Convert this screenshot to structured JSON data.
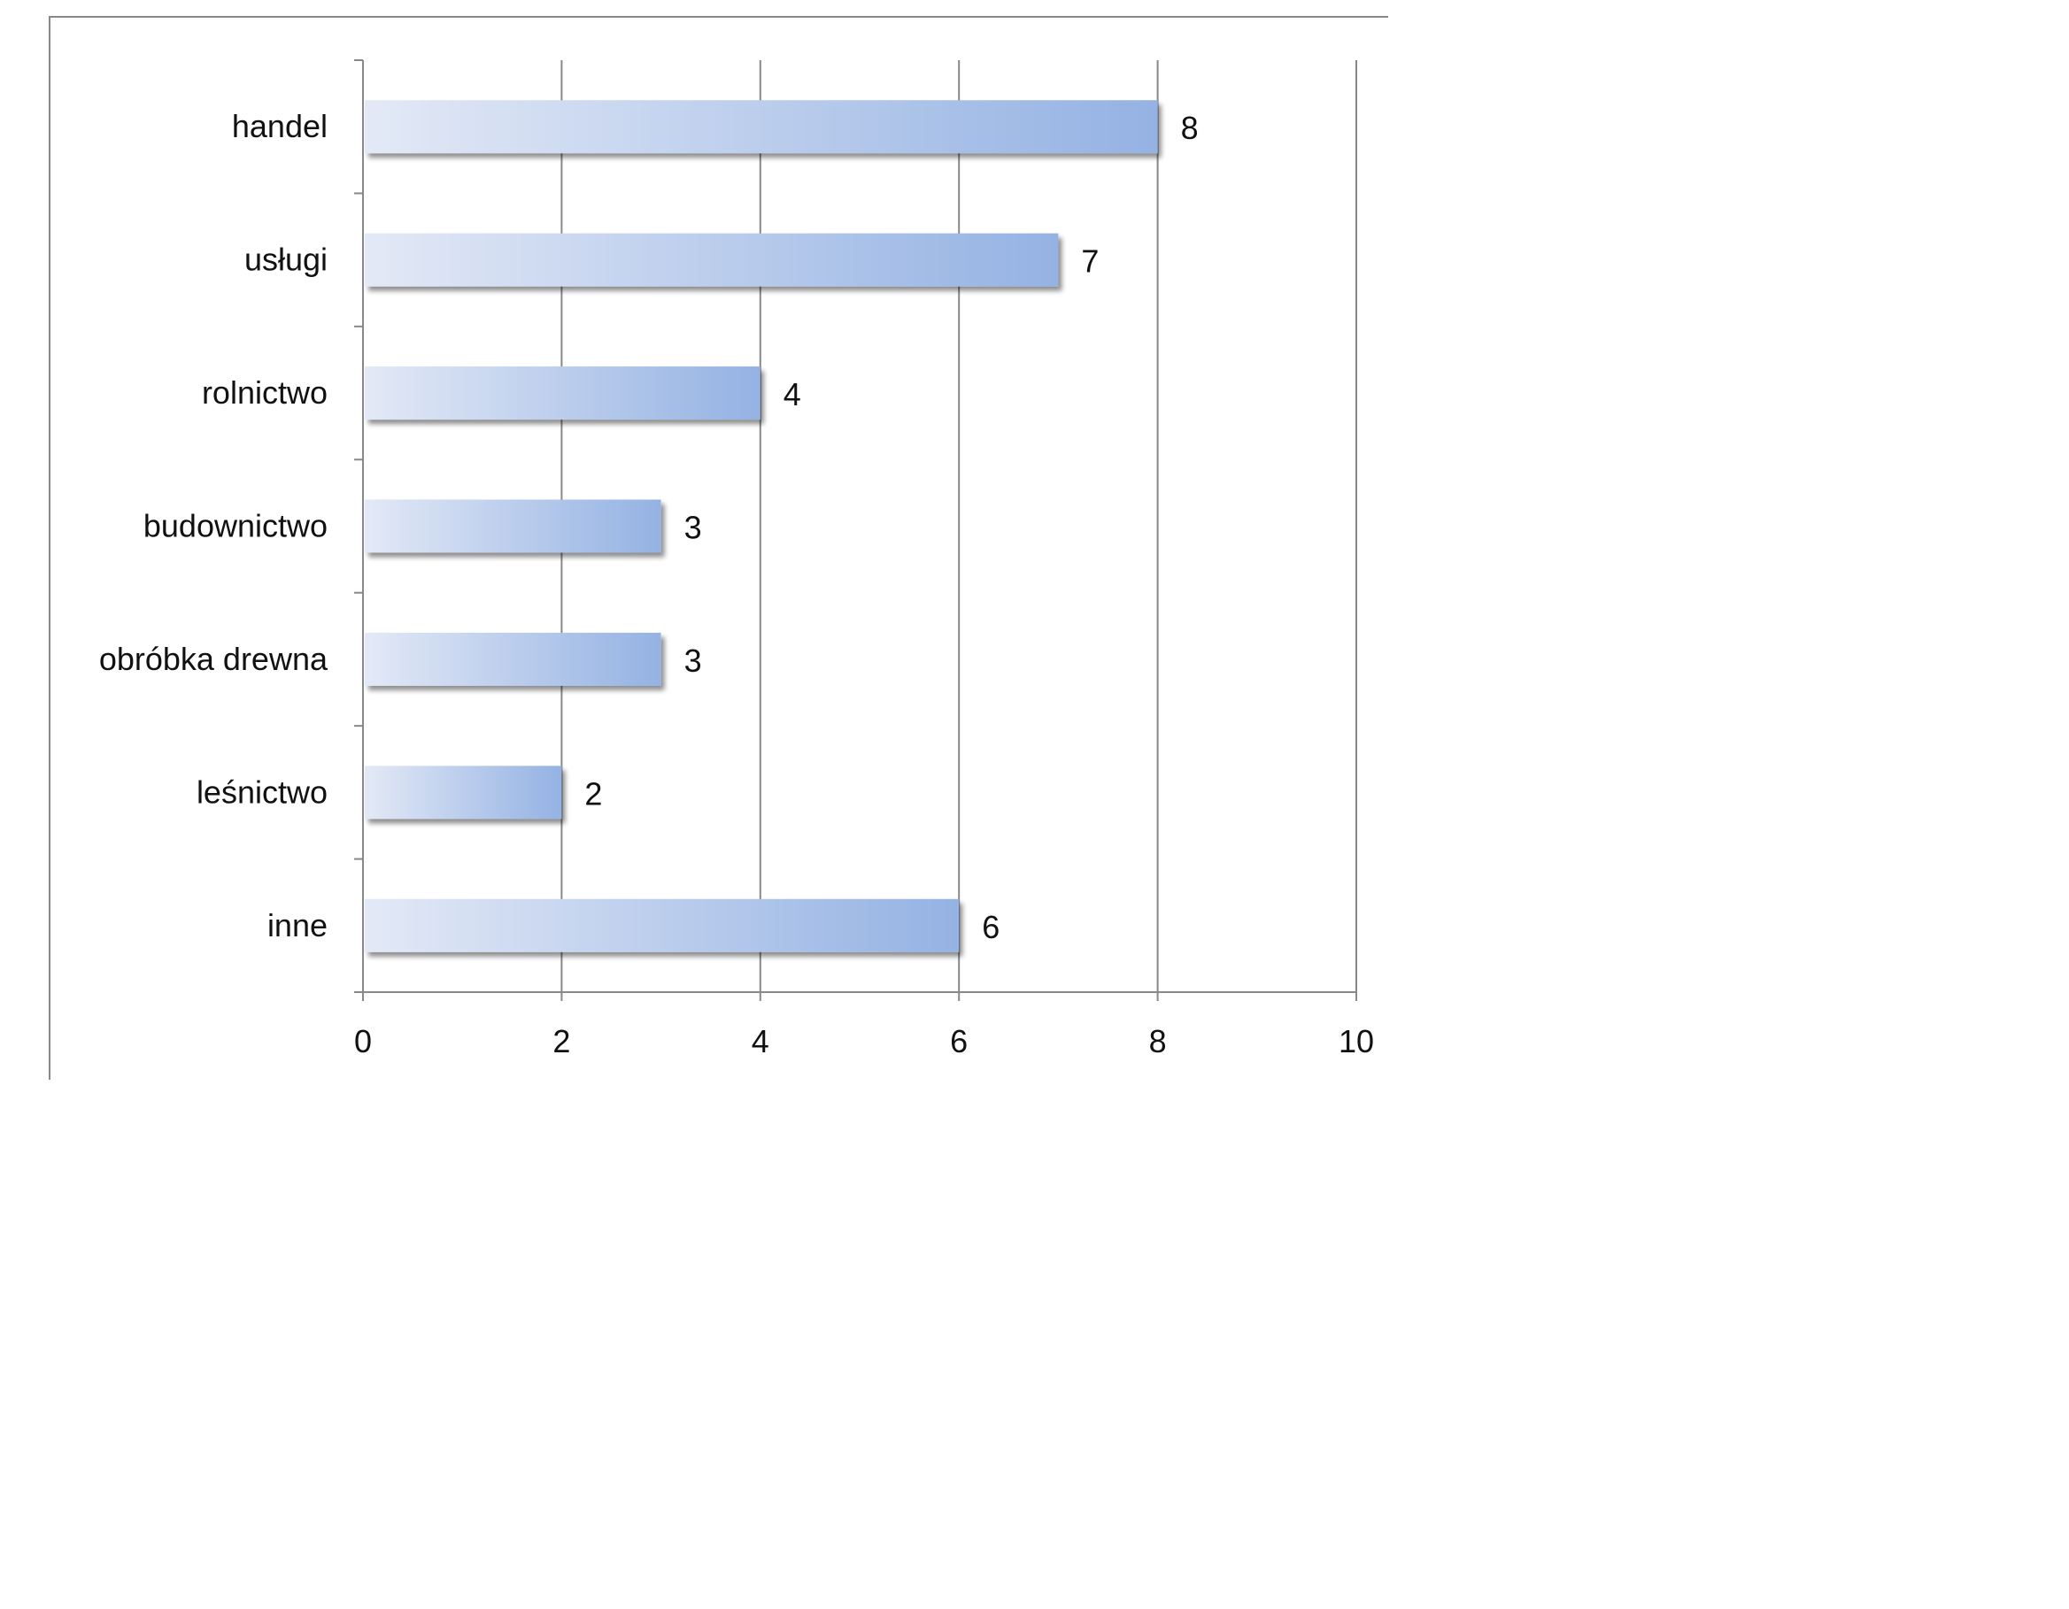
{
  "chart_data": {
    "type": "bar",
    "orientation": "horizontal",
    "categories": [
      "handel",
      "usługi",
      "rolnictwo",
      "budownictwo",
      "obróbka drewna",
      "leśnictwo",
      "inne"
    ],
    "values": [
      8,
      7,
      4,
      3,
      3,
      2,
      6
    ],
    "data_labels": [
      "8",
      "7",
      "4",
      "3",
      "3",
      "2",
      "6"
    ],
    "title": "",
    "xlabel": "",
    "ylabel": "",
    "xlim": [
      0,
      10
    ],
    "x_ticks": [
      0,
      2,
      4,
      6,
      8,
      10
    ],
    "x_tick_labels": [
      "0",
      "2",
      "4",
      "6",
      "8",
      "10"
    ],
    "grid": "vertical",
    "legend": "none",
    "colors": {
      "bar_gradient_start": "#e3e9f6",
      "bar_gradient_end": "#94b2e3",
      "gridline": "#888888",
      "axis": "#888888",
      "frame": "#888888"
    }
  }
}
